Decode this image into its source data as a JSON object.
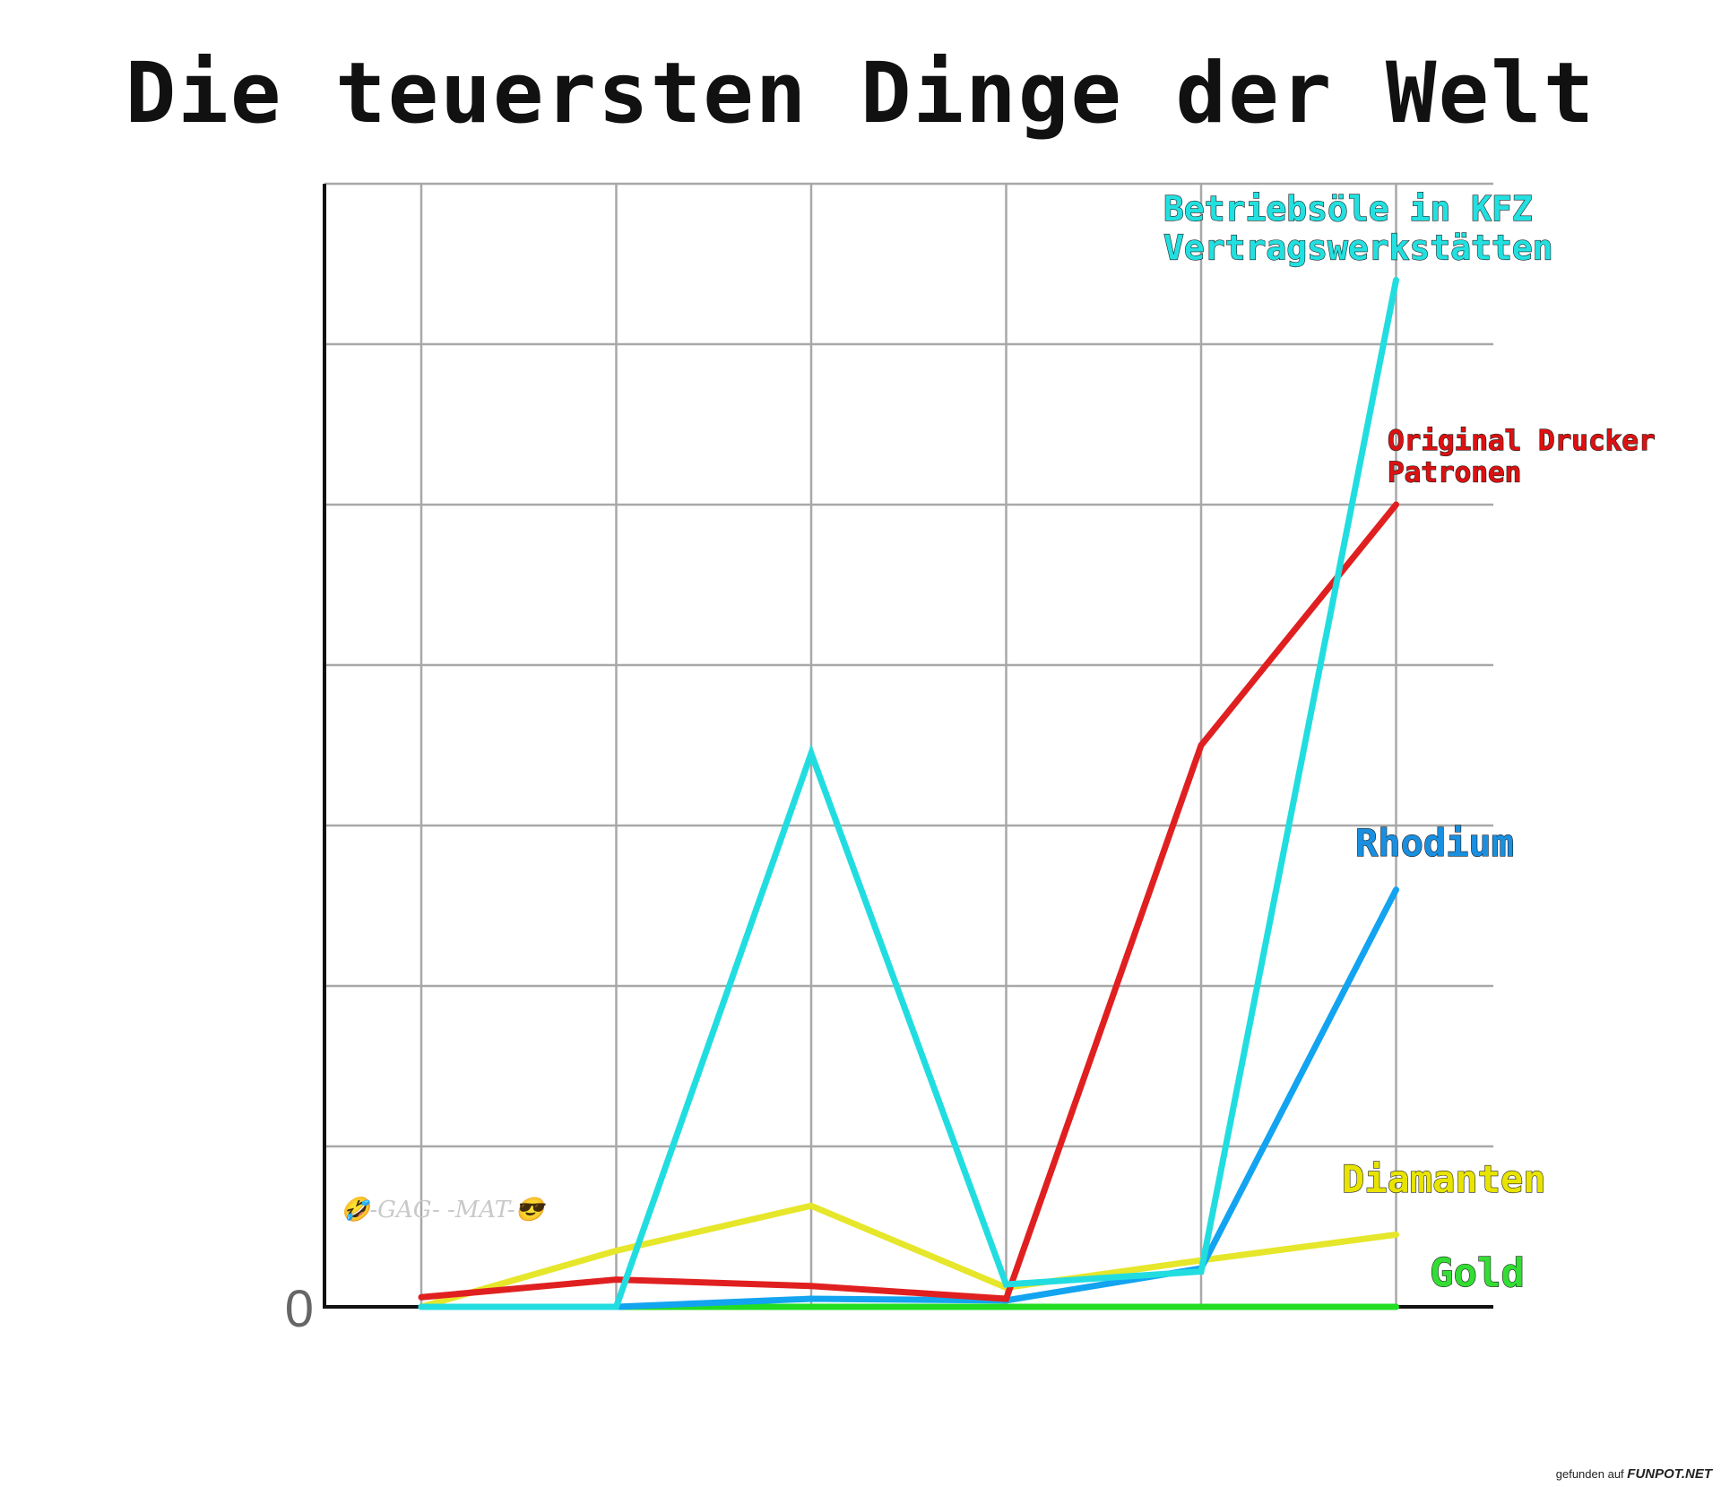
{
  "chart_data": {
    "type": "line",
    "title": "Die teuersten Dinge der Welt",
    "x": [
      1,
      2,
      3,
      4,
      5,
      6
    ],
    "ylim": [
      0,
      7
    ],
    "yticks": [
      0,
      1,
      2,
      3,
      4,
      5,
      6,
      7
    ],
    "ytick_labels": [
      "0"
    ],
    "grid": true,
    "legend": "inline-right",
    "series": [
      {
        "name": "Gold",
        "color": "#22dd22",
        "label_color": "#33dd33",
        "values": [
          0.0,
          0.0,
          0.0,
          0.0,
          0.0,
          0.0
        ]
      },
      {
        "name": "Diamanten",
        "color": "#e6e62a",
        "label_color": "#e8e400",
        "values": [
          0.0,
          0.35,
          0.63,
          0.12,
          0.29,
          0.45
        ]
      },
      {
        "name": "Rhodium",
        "color": "#12a4f0",
        "label_color": "#1a8fe0",
        "values": [
          0.0,
          0.0,
          0.05,
          0.04,
          0.24,
          2.6
        ]
      },
      {
        "name": "Original Drucker\nPatronen",
        "color": "#e02020",
        "label_color": "#dd1111",
        "values": [
          0.06,
          0.17,
          0.13,
          0.05,
          3.5,
          5.0
        ]
      },
      {
        "name": "Betriebsöle in KFZ\nVertragswerkstätten",
        "color": "#22dde0",
        "label_color": "#22e0e0",
        "values": [
          0.0,
          0.0,
          3.45,
          0.14,
          0.22,
          6.4
        ]
      }
    ]
  },
  "watermark": "-GAG-  -MAT-",
  "credit": {
    "prefix": "gefunden auf",
    "site": "FUNPOT.NET"
  }
}
